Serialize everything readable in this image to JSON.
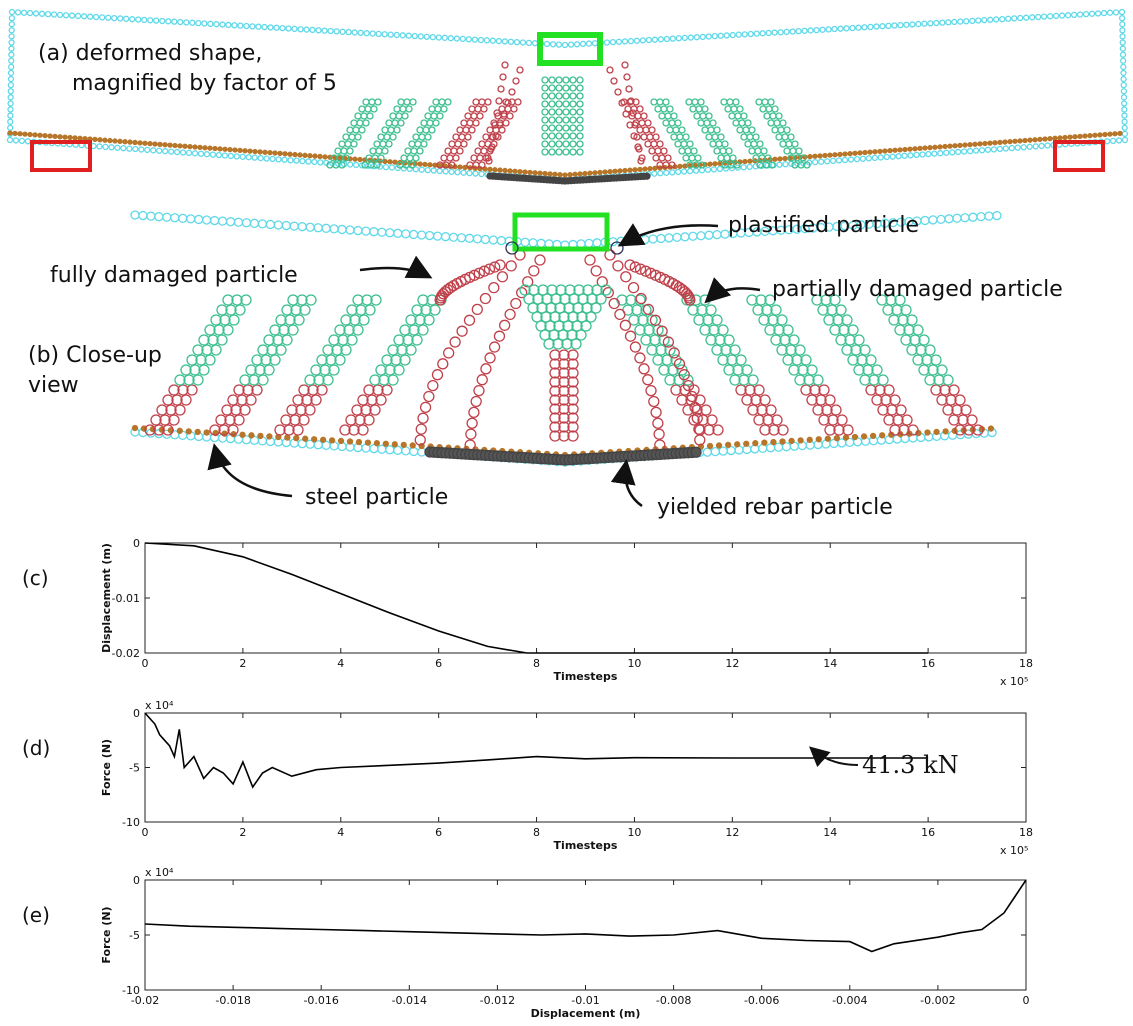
{
  "labels": {
    "a_line1": "(a) deformed shape,",
    "a_line2": "magnified by factor of 5",
    "b_line1": "(b) Close-up",
    "b_line2": "view",
    "plastified": "plastified particle",
    "fully": "fully damaged particle",
    "partially": "partially damaged particle",
    "steel": "steel particle",
    "yielded": "yielded rebar particle"
  },
  "chart_data": [
    {
      "type": "line",
      "panel_label": "(c)",
      "x_label": "Timesteps",
      "y_label": "Displacement (m)",
      "x_exponent": "x 10⁵",
      "color": "#000000",
      "x": [
        0,
        1,
        2,
        3,
        4,
        5,
        6,
        7,
        7.8,
        8,
        10,
        12,
        14,
        16
      ],
      "values": [
        0,
        -0.0005,
        -0.0025,
        -0.0057,
        -0.0092,
        -0.0127,
        -0.016,
        -0.0188,
        -0.02,
        -0.02,
        -0.02,
        -0.02,
        -0.02,
        -0.02
      ],
      "xlim": [
        0,
        18
      ],
      "ylim": [
        -0.02,
        0
      ],
      "xticks": [
        0,
        2,
        4,
        6,
        8,
        10,
        12,
        14,
        16,
        18
      ],
      "yticks": [
        0,
        -0.01,
        -0.02
      ]
    },
    {
      "type": "line",
      "panel_label": "(d)",
      "x_label": "Timesteps",
      "y_label": "Force (N)",
      "x_exponent": "x 10⁵",
      "y_exponent": "x 10⁴",
      "color": "#000000",
      "annotation": "41.3 kN",
      "x": [
        0,
        0.1,
        0.2,
        0.3,
        0.4,
        0.5,
        0.6,
        0.7,
        0.8,
        1,
        1.2,
        1.4,
        1.6,
        1.8,
        2,
        2.2,
        2.4,
        2.6,
        3,
        3.5,
        4,
        5,
        6,
        7,
        8,
        9,
        10,
        12,
        14,
        16
      ],
      "values": [
        0,
        -0.5,
        -1,
        -2,
        -2.5,
        -3,
        -4,
        -1.5,
        -5,
        -4,
        -6,
        -5,
        -5.5,
        -6.5,
        -4.5,
        -6.8,
        -5.5,
        -5,
        -5.8,
        -5.2,
        -5,
        -4.8,
        -4.6,
        -4.3,
        -4,
        -4.2,
        -4.1,
        -4.13,
        -4.13,
        -4.13
      ],
      "xlim": [
        0,
        18
      ],
      "ylim": [
        -10,
        0
      ],
      "xticks": [
        0,
        2,
        4,
        6,
        8,
        10,
        12,
        14,
        16,
        18
      ],
      "yticks": [
        0,
        -5,
        -10
      ]
    },
    {
      "type": "line",
      "panel_label": "(e)",
      "x_label": "Displacement (m)",
      "y_label": "Force (N)",
      "y_exponent": "x 10⁴",
      "color": "#000000",
      "x": [
        -0.02,
        -0.019,
        -0.018,
        -0.017,
        -0.016,
        -0.015,
        -0.014,
        -0.013,
        -0.012,
        -0.011,
        -0.01,
        -0.009,
        -0.008,
        -0.007,
        -0.006,
        -0.005,
        -0.004,
        -0.0035,
        -0.003,
        -0.002,
        -0.0015,
        -0.001,
        -0.0005,
        0
      ],
      "values": [
        -4,
        -4.2,
        -4.3,
        -4.4,
        -4.5,
        -4.6,
        -4.7,
        -4.8,
        -4.9,
        -5,
        -4.9,
        -5.1,
        -5,
        -4.6,
        -5.3,
        -5.5,
        -5.6,
        -6.5,
        -5.8,
        -5.2,
        -4.8,
        -4.5,
        -3,
        0
      ],
      "xlim": [
        -0.02,
        0
      ],
      "ylim": [
        -10,
        0
      ],
      "xticks": [
        -0.02,
        -0.018,
        -0.016,
        -0.014,
        -0.012,
        -0.01,
        -0.008,
        -0.006,
        -0.004,
        -0.002,
        0
      ],
      "yticks": [
        0,
        -5,
        -10
      ]
    }
  ]
}
